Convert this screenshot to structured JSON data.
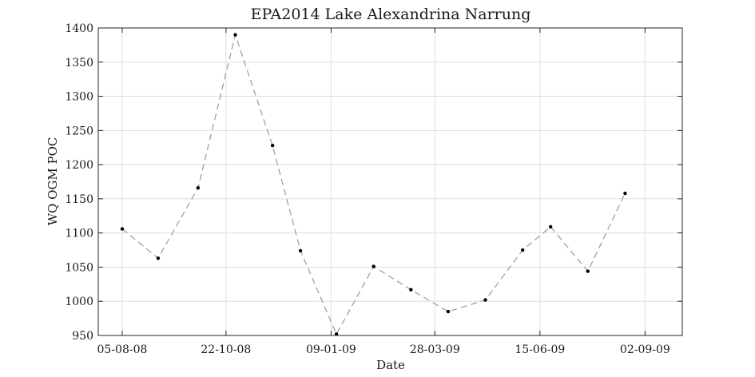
{
  "chart_data": {
    "type": "line",
    "title": "EPA2014 Lake Alexandrina Narrung",
    "xlabel": "Date",
    "ylabel": "WQ OGM POC",
    "x_tick_labels": [
      "05-08-08",
      "22-10-08",
      "09-01-09",
      "28-03-09",
      "15-06-09",
      "02-09-09"
    ],
    "x_ticks": [
      "2008-08-05",
      "2008-10-22",
      "2009-01-09",
      "2009-03-28",
      "2009-06-15",
      "2009-09-02"
    ],
    "xlim": [
      "2008-07-18",
      "2009-09-30"
    ],
    "ylim": [
      950,
      1400
    ],
    "y_ticks": [
      950,
      1000,
      1050,
      1100,
      1150,
      1200,
      1250,
      1300,
      1350,
      1400
    ],
    "grid": true,
    "series": [
      {
        "line_style": "dashed",
        "line_color": "#999999",
        "marker_color": "#000000",
        "x": [
          "2008-08-05",
          "2008-09-01",
          "2008-10-01",
          "2008-10-29",
          "2008-11-26",
          "2008-12-17",
          "2009-01-13",
          "2009-02-10",
          "2009-03-10",
          "2009-04-07",
          "2009-05-05",
          "2009-06-02",
          "2009-06-23",
          "2009-07-21",
          "2009-08-18"
        ],
        "y": [
          1106,
          1063,
          1166,
          1390,
          1228,
          1074,
          952,
          1051,
          1017,
          985,
          1002,
          1075,
          1109,
          1044,
          1158
        ]
      }
    ]
  }
}
